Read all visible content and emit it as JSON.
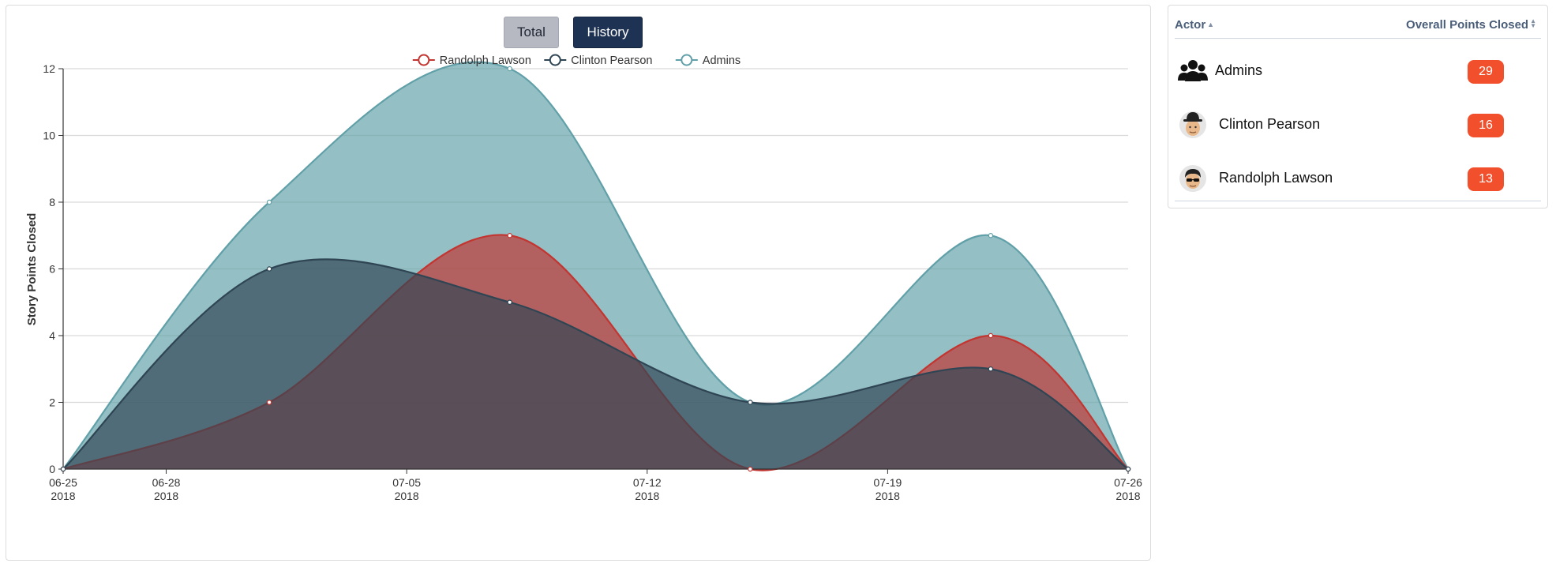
{
  "controls": {
    "total_label": "Total",
    "history_label": "History",
    "active": "History"
  },
  "legend": [
    {
      "name": "Randolph Lawson",
      "color": "#c23531"
    },
    {
      "name": "Clinton Pearson",
      "color": "#2f4554"
    },
    {
      "name": "Admins",
      "color": "#61a0a8"
    }
  ],
  "chart_data": {
    "type": "area",
    "title": "",
    "xlabel": "",
    "ylabel": "Story Points Closed",
    "x": [
      "2018-06-25",
      "2018-07-01",
      "2018-07-08",
      "2018-07-15",
      "2018-07-22",
      "2018-07-26"
    ],
    "x_ticks": [
      {
        "date": "2018-06-25",
        "label_top": "06-25",
        "label_bottom": "2018"
      },
      {
        "date": "2018-06-28",
        "label_top": "06-28",
        "label_bottom": "2018"
      },
      {
        "date": "2018-07-05",
        "label_top": "07-05",
        "label_bottom": "2018"
      },
      {
        "date": "2018-07-12",
        "label_top": "07-12",
        "label_bottom": "2018"
      },
      {
        "date": "2018-07-19",
        "label_top": "07-19",
        "label_bottom": "2018"
      },
      {
        "date": "2018-07-26",
        "label_top": "07-26",
        "label_bottom": "2018"
      }
    ],
    "xlim": [
      "2018-06-25",
      "2018-07-26"
    ],
    "ylim": [
      0,
      12
    ],
    "y_ticks": [
      0,
      2,
      4,
      6,
      8,
      10,
      12
    ],
    "grid": true,
    "legend_position": "top-center",
    "smooth": true,
    "series": [
      {
        "name": "Randolph Lawson",
        "color": "#c23531",
        "values": [
          0,
          2,
          7,
          0,
          4,
          0
        ]
      },
      {
        "name": "Clinton Pearson",
        "color": "#2f4554",
        "values": [
          0,
          6,
          5,
          2,
          3,
          0
        ]
      },
      {
        "name": "Admins",
        "color": "#61a0a8",
        "values": [
          0,
          8,
          12,
          2,
          7,
          0
        ]
      }
    ]
  },
  "leaderboard": {
    "col_actor": "Actor",
    "col_points": "Overall Points Closed",
    "rows": [
      {
        "name": "Admins",
        "points": "29",
        "avatar": "group-icon"
      },
      {
        "name": "Clinton Pearson",
        "points": "16",
        "avatar": "hat-avatar-icon"
      },
      {
        "name": "Randolph Lawson",
        "points": "13",
        "avatar": "sunglasses-avatar-icon"
      }
    ]
  }
}
